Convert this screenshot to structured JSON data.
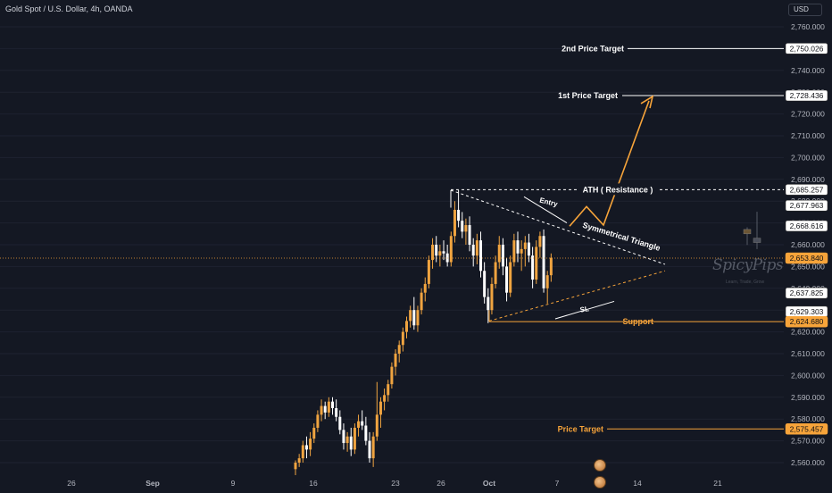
{
  "header": {
    "title": "Gold Spot / U.S. Dollar, 4h, OANDA",
    "currency_button": "USD"
  },
  "watermark": {
    "brand": "SpicyPips",
    "tagline": "Learn, Trade, Grow"
  },
  "colors": {
    "background": "#141823",
    "up_candle": "#f0a440",
    "down_candle": "#ffffff",
    "accent": "#f7a43a",
    "grid": "#1e2230",
    "text": "#d1d4dc"
  },
  "chart_data": {
    "type": "candlestick",
    "ylim": [
      2555,
      2766
    ],
    "y_ticks": [
      2560,
      2570,
      2580,
      2590,
      2600,
      2610,
      2620,
      2630,
      2640,
      2650,
      2660,
      2670,
      2680,
      2690,
      2700,
      2710,
      2720,
      2730,
      2740,
      2750,
      2760
    ],
    "x_tick_labels": [
      "26",
      "Sep",
      "9",
      "16",
      "23",
      "26",
      "Oct",
      "7",
      "14",
      "21"
    ],
    "price_tags": [
      {
        "label": "2,750.026",
        "value": 2750.026,
        "style": "white"
      },
      {
        "label": "2,728.436",
        "value": 2728.436,
        "style": "white"
      },
      {
        "label": "2,685.257",
        "value": 2685.257,
        "style": "white"
      },
      {
        "label": "2,677.963",
        "value": 2677.963,
        "style": "white"
      },
      {
        "label": "2,668.616",
        "value": 2668.616,
        "style": "white"
      },
      {
        "label": "2,653.840",
        "value": 2653.84,
        "style": "orange"
      },
      {
        "label": "2,637.825",
        "value": 2637.825,
        "style": "white"
      },
      {
        "label": "2,629.303",
        "value": 2629.303,
        "style": "white"
      },
      {
        "label": "2,624.680",
        "value": 2624.68,
        "style": "orange"
      },
      {
        "label": "2,575.457",
        "value": 2575.457,
        "style": "orange"
      }
    ],
    "annotations": [
      {
        "text": "2nd Price Target",
        "value": 2750.026,
        "color": "white",
        "line": "solid"
      },
      {
        "text": "1st Price Target",
        "value": 2728.436,
        "color": "white",
        "line": "solid"
      },
      {
        "text": "ATH ( Resistance )",
        "value": 2685.257,
        "color": "white",
        "line": "dashed"
      },
      {
        "text": "Support",
        "value": 2624.68,
        "color": "orange",
        "line": "solid"
      },
      {
        "text": "Price Target",
        "value": 2575.457,
        "color": "orange",
        "line": "solid"
      },
      {
        "text": "Entry",
        "color": "white"
      },
      {
        "text": "Symmetrical Triangle",
        "color": "white"
      },
      {
        "text": "SL",
        "color": "white"
      }
    ],
    "current_price": 2653.84,
    "candles": [
      [
        2557,
        2561,
        2554,
        2560
      ],
      [
        2560,
        2564,
        2558,
        2562
      ],
      [
        2562,
        2570,
        2560,
        2568
      ],
      [
        2568,
        2572,
        2562,
        2566
      ],
      [
        2566,
        2574,
        2563,
        2571
      ],
      [
        2571,
        2578,
        2569,
        2576
      ],
      [
        2576,
        2584,
        2574,
        2582
      ],
      [
        2582,
        2589,
        2579,
        2586
      ],
      [
        2586,
        2588,
        2580,
        2583
      ],
      [
        2583,
        2590,
        2581,
        2588
      ],
      [
        2588,
        2590,
        2582,
        2585
      ],
      [
        2585,
        2589,
        2579,
        2581
      ],
      [
        2581,
        2584,
        2573,
        2575
      ],
      [
        2575,
        2578,
        2566,
        2569
      ],
      [
        2569,
        2574,
        2565,
        2572
      ],
      [
        2572,
        2576,
        2563,
        2566
      ],
      [
        2566,
        2578,
        2564,
        2576
      ],
      [
        2576,
        2582,
        2572,
        2579
      ],
      [
        2579,
        2584,
        2575,
        2577
      ],
      [
        2577,
        2581,
        2568,
        2570
      ],
      [
        2570,
        2574,
        2560,
        2562
      ],
      [
        2562,
        2574,
        2558,
        2572
      ],
      [
        2572,
        2597,
        2570,
        2582
      ],
      [
        2582,
        2590,
        2576,
        2588
      ],
      [
        2588,
        2594,
        2584,
        2591
      ],
      [
        2591,
        2598,
        2588,
        2596
      ],
      [
        2596,
        2606,
        2594,
        2604
      ],
      [
        2604,
        2612,
        2600,
        2610
      ],
      [
        2610,
        2616,
        2606,
        2614
      ],
      [
        2614,
        2622,
        2611,
        2620
      ],
      [
        2620,
        2627,
        2617,
        2625
      ],
      [
        2625,
        2632,
        2622,
        2630
      ],
      [
        2630,
        2636,
        2621,
        2623
      ],
      [
        2623,
        2632,
        2620,
        2630
      ],
      [
        2630,
        2640,
        2628,
        2638
      ],
      [
        2638,
        2645,
        2634,
        2642
      ],
      [
        2642,
        2655,
        2640,
        2653
      ],
      [
        2653,
        2663,
        2649,
        2660
      ],
      [
        2660,
        2664,
        2652,
        2655
      ],
      [
        2655,
        2660,
        2650,
        2657
      ],
      [
        2657,
        2662,
        2653,
        2656
      ],
      [
        2656,
        2660,
        2650,
        2652
      ],
      [
        2652,
        2666,
        2650,
        2664
      ],
      [
        2664,
        2680,
        2661,
        2676
      ],
      [
        2676,
        2685,
        2668,
        2671
      ],
      [
        2671,
        2675,
        2663,
        2666
      ],
      [
        2666,
        2672,
        2660,
        2669
      ],
      [
        2669,
        2673,
        2657,
        2660
      ],
      [
        2660,
        2663,
        2650,
        2655
      ],
      [
        2655,
        2665,
        2651,
        2662
      ],
      [
        2662,
        2666,
        2645,
        2648
      ],
      [
        2648,
        2652,
        2633,
        2636
      ],
      [
        2636,
        2640,
        2624,
        2630
      ],
      [
        2630,
        2645,
        2628,
        2642
      ],
      [
        2642,
        2655,
        2640,
        2652
      ],
      [
        2652,
        2664,
        2649,
        2660
      ],
      [
        2660,
        2663,
        2646,
        2650
      ],
      [
        2650,
        2654,
        2634,
        2638
      ],
      [
        2638,
        2655,
        2636,
        2652
      ],
      [
        2652,
        2665,
        2650,
        2662
      ],
      [
        2662,
        2666,
        2652,
        2656
      ],
      [
        2656,
        2662,
        2648,
        2658
      ],
      [
        2658,
        2664,
        2650,
        2661
      ],
      [
        2661,
        2665,
        2652,
        2655
      ],
      [
        2655,
        2659,
        2640,
        2644
      ],
      [
        2644,
        2662,
        2642,
        2659
      ],
      [
        2659,
        2666,
        2654,
        2664
      ],
      [
        2664,
        2667,
        2638,
        2640
      ],
      [
        2640,
        2648,
        2633,
        2646
      ],
      [
        2646,
        2656,
        2643,
        2654
      ]
    ],
    "projection_path": [
      [
        2668.5
      ],
      [
        2677.5
      ],
      [
        2669
      ],
      [
        2726
      ]
    ],
    "ghost_candles": [
      [
        2665,
        2668,
        2664,
        2667
      ],
      [
        2661,
        2671,
        2658,
        2663
      ]
    ]
  }
}
